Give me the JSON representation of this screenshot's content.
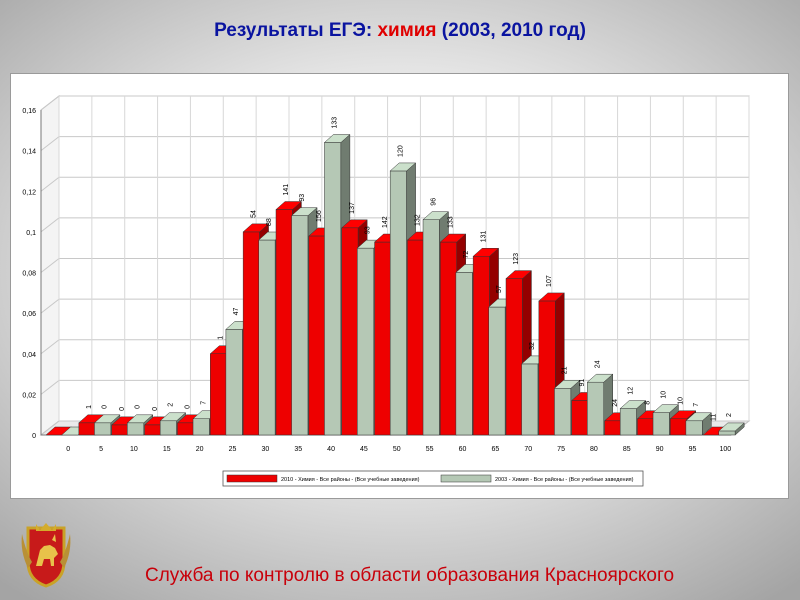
{
  "slide": {
    "title_part1": "Результаты ЕГЭ: ",
    "title_part2": "химия",
    "title_part3": " (2003, 2010 год)",
    "footer": "Служба по контролю в области образования Красноярского",
    "title_color": "#0a14a0",
    "highlight_color": "#e00000",
    "footer_color": "#c8000a"
  },
  "emblem": {
    "icon": "krasnoyarsk-coat-of-arms-icon"
  },
  "chart_data": {
    "type": "bar",
    "title": "",
    "xlabel": "",
    "ylabel": "",
    "categories": [
      "0",
      "5",
      "10",
      "15",
      "20",
      "25",
      "30",
      "35",
      "40",
      "45",
      "50",
      "55",
      "60",
      "65",
      "70",
      "75",
      "80",
      "85",
      "90",
      "95",
      "100"
    ],
    "ylim": [
      0,
      0.16
    ],
    "yticks": [
      "0",
      "0,02",
      "0,04",
      "0,06",
      "0,08",
      "0,1",
      "0,12",
      "0,14",
      "0,16"
    ],
    "grid": true,
    "legend_position": "bottom-right",
    "series": [
      {
        "name": "2010 - Химия - Все районы - (Все учебные заведения)",
        "color": "#ee0000",
        "values": [
          0,
          0.006,
          0.005,
          0.005,
          0.006,
          0.04,
          0.1,
          0.111,
          0.098,
          0.102,
          0.095,
          0.096,
          0.095,
          0.088,
          0.077,
          0.066,
          0.017,
          0.007,
          0.008,
          0.008,
          0
        ],
        "labels": [
          "",
          "1",
          "0",
          "0",
          "0",
          "1",
          "54",
          "141",
          "156",
          "137",
          "142",
          "132",
          "133",
          "131",
          "123",
          "107",
          "91",
          "24",
          "8",
          "10",
          "11"
        ]
      },
      {
        "name": "2003 - Химия - Все районы - (Все учебные заведения)",
        "color": "#b5c8b5",
        "values": [
          0,
          0.006,
          0.006,
          0.007,
          0.008,
          0.052,
          0.096,
          0.108,
          0.144,
          0.092,
          0.13,
          0.106,
          0.08,
          0.063,
          0.035,
          0.023,
          0.026,
          0.013,
          0.011,
          0.007,
          0.002
        ],
        "labels": [
          "",
          "0",
          "0",
          "2",
          "7",
          "47",
          "88",
          "93",
          "133",
          "93",
          "120",
          "96",
          "72",
          "57",
          "32",
          "21",
          "24",
          "12",
          "10",
          "7",
          "2"
        ]
      }
    ]
  }
}
